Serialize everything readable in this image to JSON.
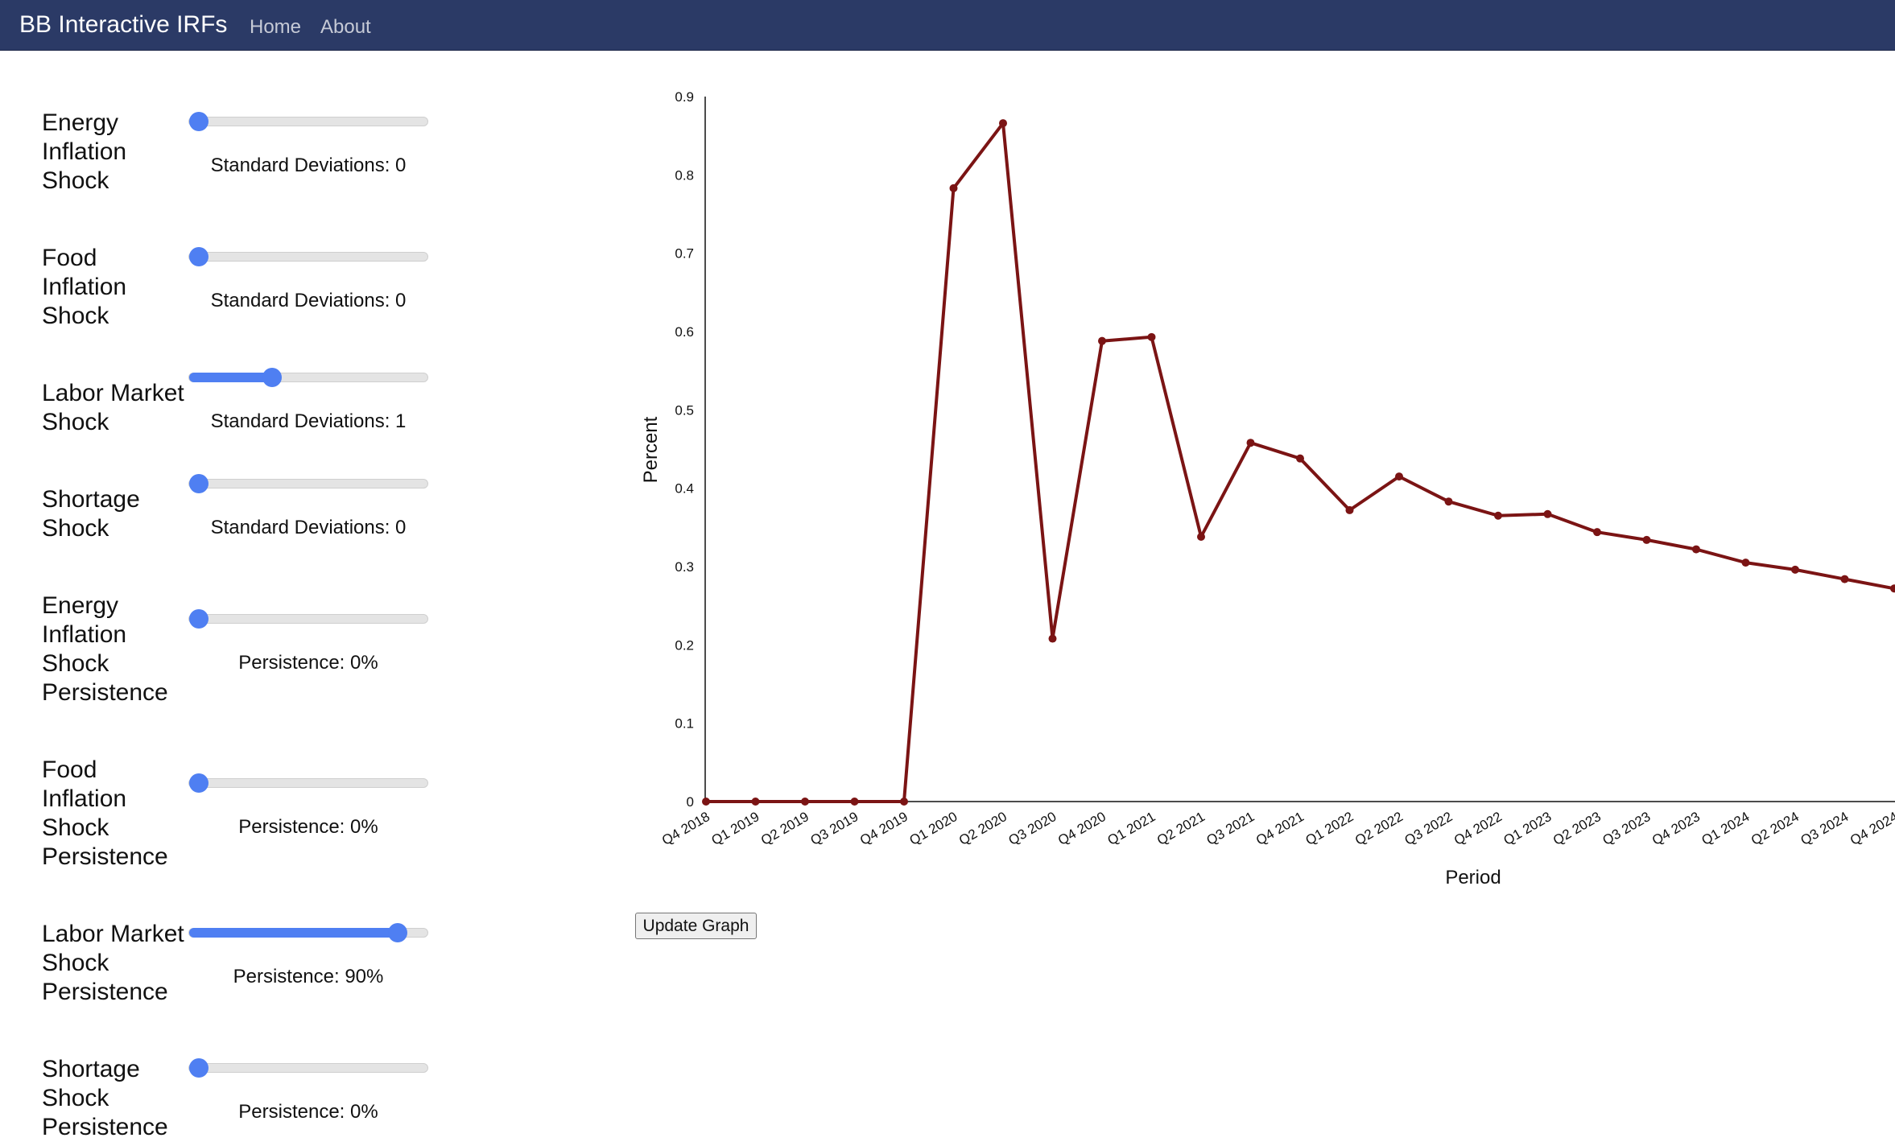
{
  "navbar": {
    "brand": "BB Interactive IRFs",
    "links": [
      "Home",
      "About"
    ]
  },
  "controls": [
    {
      "label": [
        "Energy",
        "Inflation",
        "Shock"
      ],
      "readout": "Standard Deviations: 0",
      "value": 0,
      "min": 0,
      "max": 3
    },
    {
      "label": [
        "Food",
        "Inflation",
        "Shock"
      ],
      "readout": "Standard Deviations: 0",
      "value": 0,
      "min": 0,
      "max": 3
    },
    {
      "label": [
        "Labor Market",
        "Shock"
      ],
      "readout": "Standard Deviations: 1",
      "value": 1,
      "min": 0,
      "max": 3
    },
    {
      "label": [
        "Shortage",
        "Shock"
      ],
      "readout": "Standard Deviations: 0",
      "value": 0,
      "min": 0,
      "max": 3
    },
    {
      "label": [
        "Energy",
        "Inflation",
        "Shock",
        "Persistence"
      ],
      "readout": "Persistence: 0%",
      "value": 0,
      "min": 0,
      "max": 100
    },
    {
      "label": [
        "Food",
        "Inflation",
        "Shock",
        "Persistence"
      ],
      "readout": "Persistence: 0%",
      "value": 0,
      "min": 0,
      "max": 100
    },
    {
      "label": [
        "Labor Market",
        "Shock",
        "Persistence"
      ],
      "readout": "Persistence: 90%",
      "value": 90,
      "min": 0,
      "max": 100
    },
    {
      "label": [
        "Shortage",
        "Shock",
        "Persistence"
      ],
      "readout": "Persistence: 0%",
      "value": 0,
      "min": 0,
      "max": 100
    }
  ],
  "update_button": "Update Graph",
  "colors": {
    "navbar": "#2b3a66",
    "line": "#7b1414",
    "slider": "#4f7ff2"
  },
  "chart_data": {
    "type": "line",
    "xlabel": "Period",
    "ylabel": "Percent",
    "ylim": [
      0,
      0.9
    ],
    "yticks": [
      "0",
      "0.1",
      "0.2",
      "0.3",
      "0.4",
      "0.5",
      "0.6",
      "0.7",
      "0.8",
      "0.9"
    ],
    "grid": false,
    "categories": [
      "Q4 2018",
      "Q1 2019",
      "Q2 2019",
      "Q3 2019",
      "Q4 2019",
      "Q1 2020",
      "Q2 2020",
      "Q3 2020",
      "Q4 2020",
      "Q1 2021",
      "Q2 2021",
      "Q3 2021",
      "Q4 2021",
      "Q1 2022",
      "Q2 2022",
      "Q3 2022",
      "Q4 2022",
      "Q1 2023",
      "Q2 2023",
      "Q3 2023",
      "Q4 2023",
      "Q1 2024",
      "Q2 2024",
      "Q3 2024",
      "Q4 2024"
    ],
    "series": [
      {
        "values": [
          0,
          0,
          0,
          0,
          0,
          0.783,
          0.866,
          0.208,
          0.588,
          0.593,
          0.338,
          0.458,
          0.438,
          0.372,
          0.415,
          0.383,
          0.365,
          0.367,
          0.344,
          0.334,
          0.322,
          0.305,
          0.296,
          0.284,
          0.272
        ]
      }
    ]
  }
}
